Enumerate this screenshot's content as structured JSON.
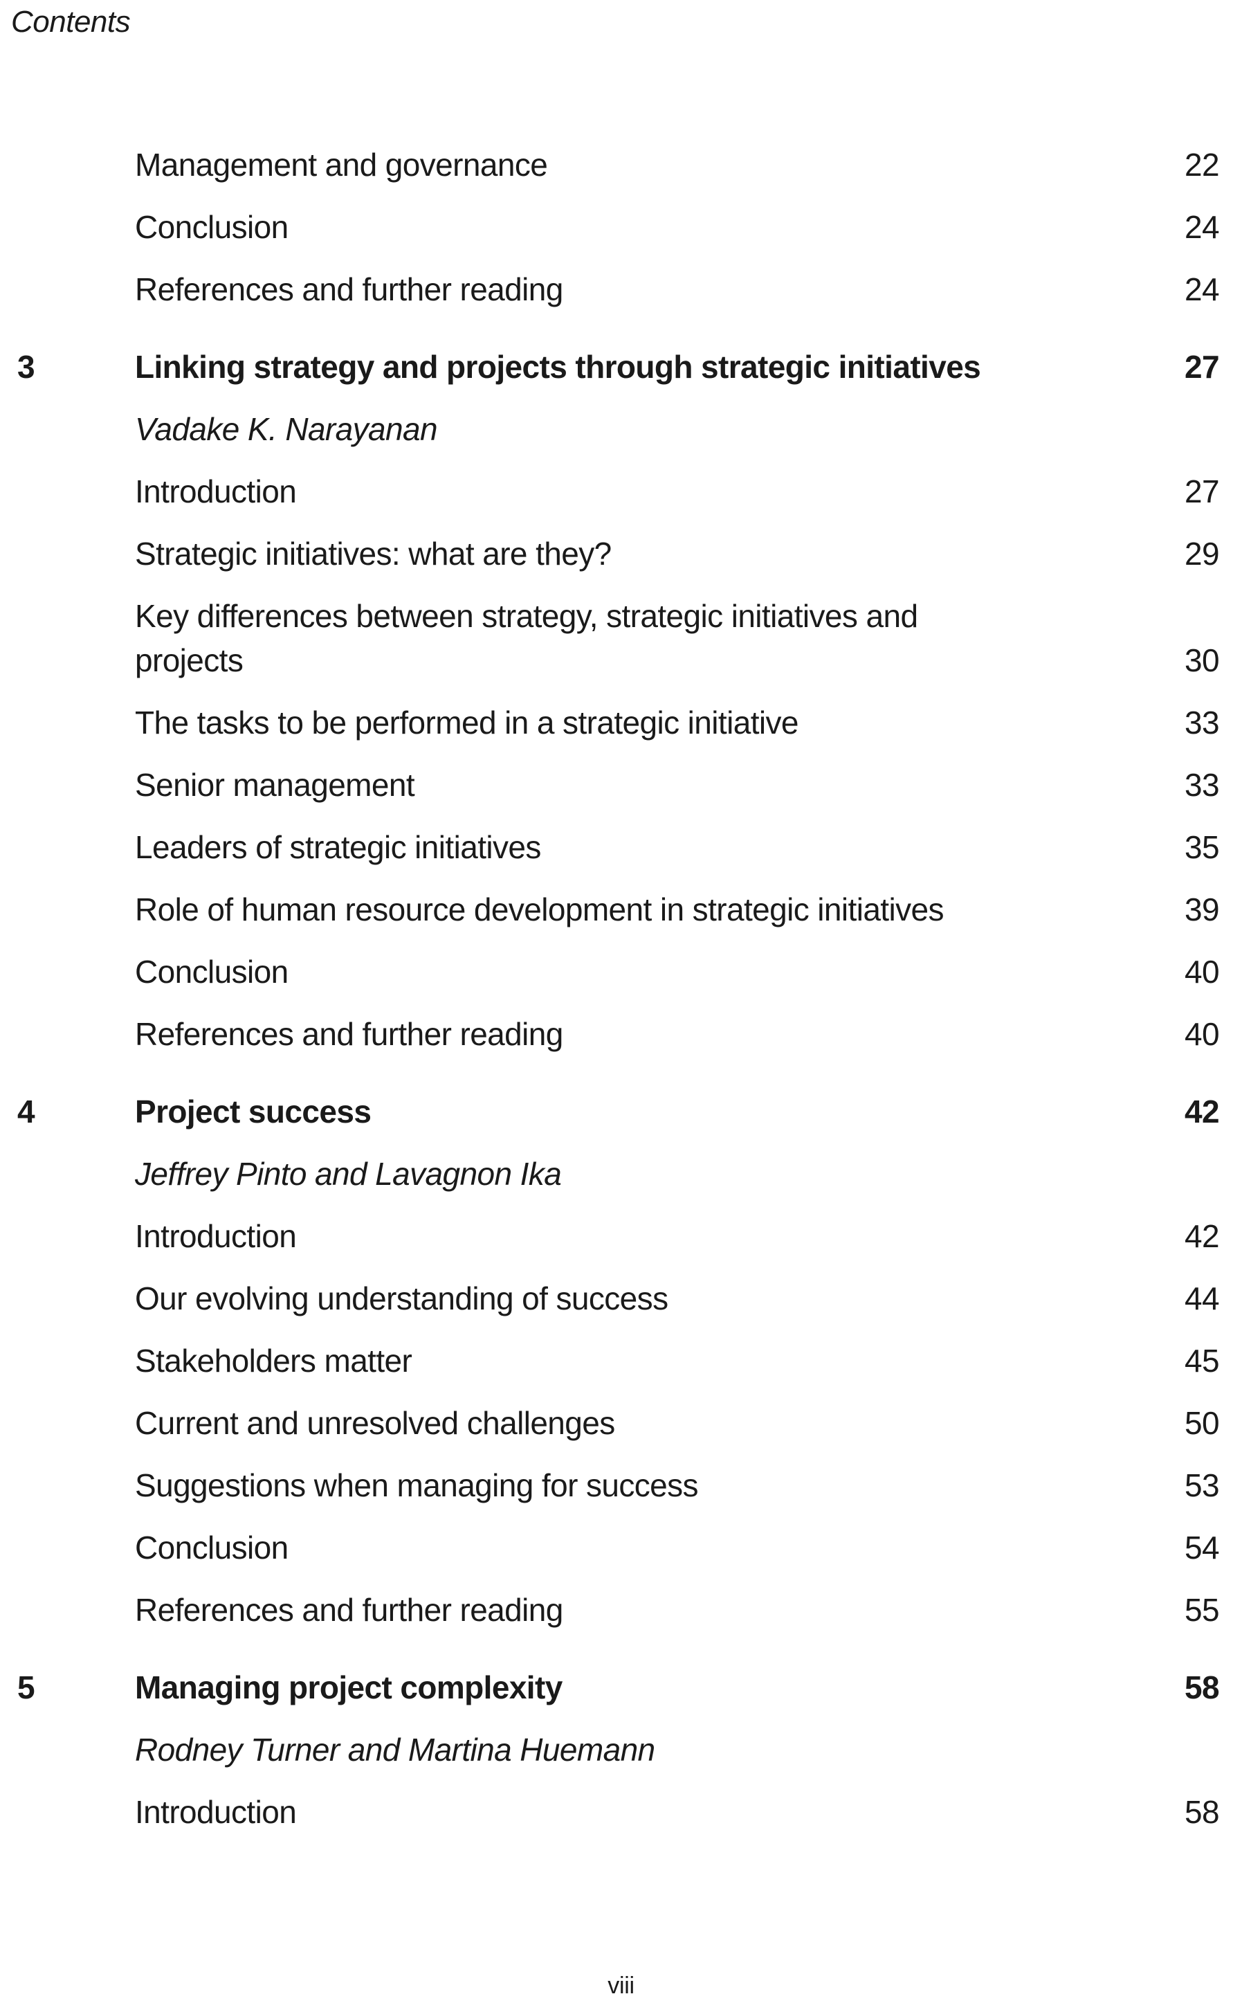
{
  "page": {
    "running_head": "Contents",
    "folio": "viii"
  },
  "toc": {
    "entries": [
      {
        "type": "section",
        "label": "Management and governance",
        "page": "22"
      },
      {
        "type": "section",
        "label": "Conclusion",
        "page": "24"
      },
      {
        "type": "section",
        "label": "References and further reading",
        "page": "24"
      },
      {
        "type": "chapter",
        "number": "3",
        "label": "Linking strategy and projects through strategic initiatives",
        "page": "27"
      },
      {
        "type": "author",
        "label": "Vadake K. Narayanan"
      },
      {
        "type": "section",
        "label": "Introduction",
        "page": "27"
      },
      {
        "type": "section",
        "label": "Strategic initiatives: what are they?",
        "page": "29"
      },
      {
        "type": "section",
        "label": "Key differences between strategy, strategic initiatives and projects",
        "page": "30",
        "wrap": true
      },
      {
        "type": "section",
        "label": "The tasks to be performed in a strategic initiative",
        "page": "33"
      },
      {
        "type": "section",
        "label": "Senior management",
        "page": "33"
      },
      {
        "type": "section",
        "label": "Leaders of strategic initiatives",
        "page": "35"
      },
      {
        "type": "section",
        "label": "Role of human resource development in strategic initiatives",
        "page": "39"
      },
      {
        "type": "section",
        "label": "Conclusion",
        "page": "40"
      },
      {
        "type": "section",
        "label": "References and further reading",
        "page": "40"
      },
      {
        "type": "chapter",
        "number": "4",
        "label": "Project success",
        "page": "42"
      },
      {
        "type": "author",
        "label": "Jeffrey Pinto and Lavagnon Ika"
      },
      {
        "type": "section",
        "label": "Introduction",
        "page": "42"
      },
      {
        "type": "section",
        "label": "Our evolving understanding of success",
        "page": "44"
      },
      {
        "type": "section",
        "label": "Stakeholders matter",
        "page": "45"
      },
      {
        "type": "section",
        "label": "Current and unresolved challenges",
        "page": "50"
      },
      {
        "type": "section",
        "label": "Suggestions when managing for success",
        "page": "53"
      },
      {
        "type": "section",
        "label": "Conclusion",
        "page": "54"
      },
      {
        "type": "section",
        "label": "References and further reading",
        "page": "55"
      },
      {
        "type": "chapter",
        "number": "5",
        "label": "Managing project complexity",
        "page": "58"
      },
      {
        "type": "author",
        "label": "Rodney Turner and Martina Huemann"
      },
      {
        "type": "section",
        "label": "Introduction",
        "page": "58"
      }
    ]
  }
}
